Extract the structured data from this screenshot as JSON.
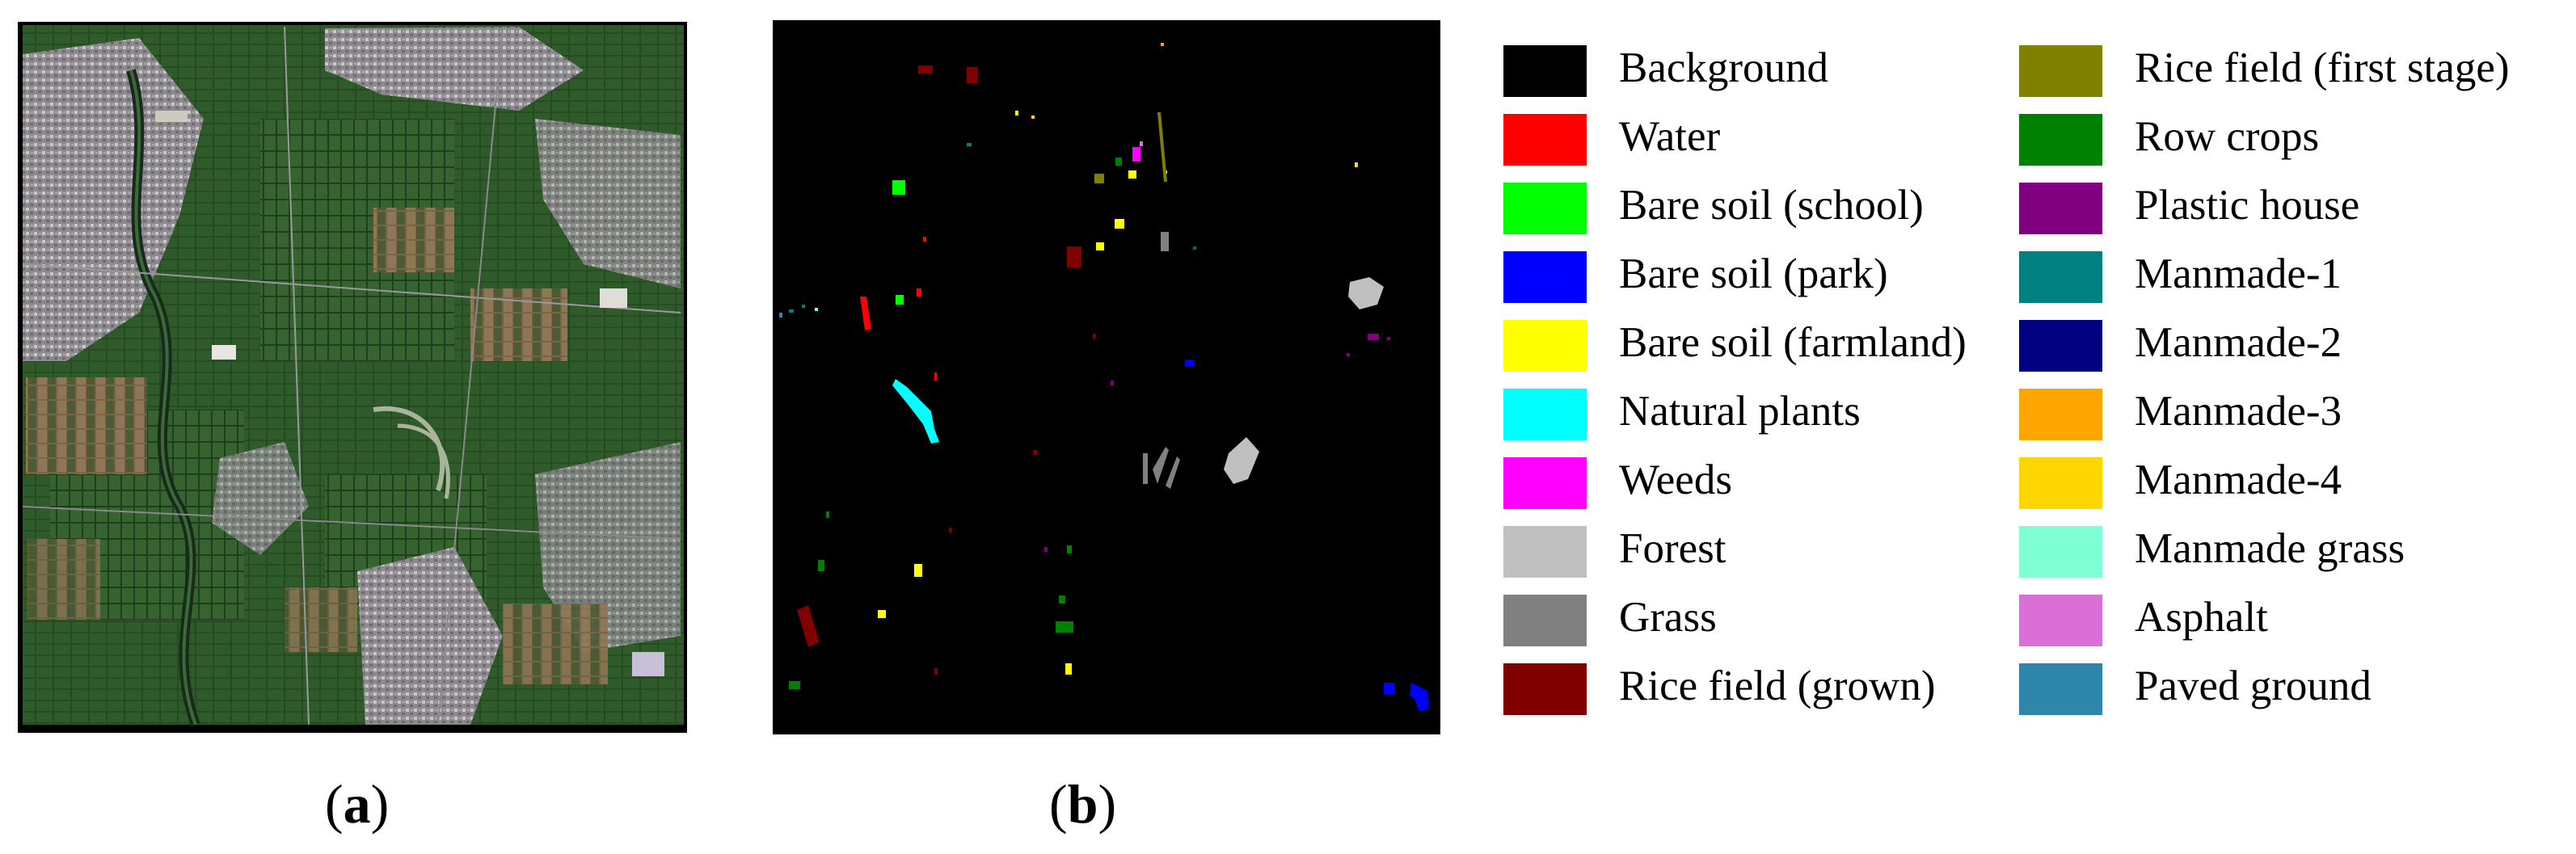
{
  "captions": {
    "a": "a",
    "b": "b"
  },
  "legend": [
    {
      "label": "Background",
      "color": "#000000"
    },
    {
      "label": "Water",
      "color": "#ff0000"
    },
    {
      "label": "Bare soil (school)",
      "color": "#00ff00"
    },
    {
      "label": "Bare soil (park)",
      "color": "#0000ff"
    },
    {
      "label": "Bare soil (farmland)",
      "color": "#ffff00"
    },
    {
      "label": "Natural plants",
      "color": "#00ffff"
    },
    {
      "label": "Weeds",
      "color": "#ff00ff"
    },
    {
      "label": "Forest",
      "color": "#c0c0c0"
    },
    {
      "label": "Grass",
      "color": "#808080"
    },
    {
      "label": "Rice field (grown)",
      "color": "#800000"
    },
    {
      "label": "Rice field (first stage)",
      "color": "#808000"
    },
    {
      "label": "Row crops",
      "color": "#008000"
    },
    {
      "label": "Plastic house",
      "color": "#800080"
    },
    {
      "label": "Manmade-1",
      "color": "#008080"
    },
    {
      "label": "Manmade-2",
      "color": "#000080"
    },
    {
      "label": "Manmade-3",
      "color": "#ffa500"
    },
    {
      "label": "Manmade-4",
      "color": "#ffd700"
    },
    {
      "label": "Manmade grass",
      "color": "#7fffd4"
    },
    {
      "label": "Asphalt",
      "color": "#da70d6"
    },
    {
      "label": "Paved ground",
      "color": "#2e86ab"
    }
  ]
}
